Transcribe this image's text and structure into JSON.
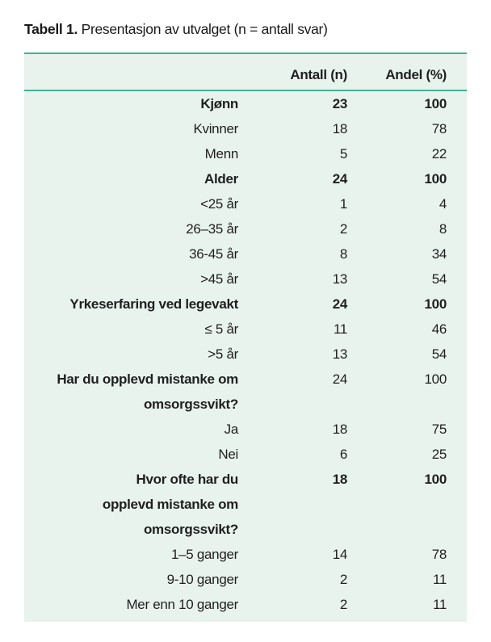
{
  "title": {
    "label": "Tabell 1.",
    "text": " Presentasjon av utvalget (n = antall svar)"
  },
  "colors": {
    "accent_green": "#45b193",
    "table_bg": "#e9f3ee",
    "text": "#1f1f1f"
  },
  "chart_data": {
    "type": "table",
    "title": "Tabell 1. Presentasjon av utvalget (n = antall svar)",
    "columns": [
      "",
      "Antall (n)",
      "Andel (%)"
    ],
    "legend_position": "none",
    "grid": false,
    "rows": [
      {
        "label": "Kjønn",
        "antall": "23",
        "andel": "100",
        "bold_label": true,
        "bold_values": true
      },
      {
        "label": "Kvinner",
        "antall": "18",
        "andel": "78",
        "bold_label": false,
        "bold_values": false
      },
      {
        "label": "Menn",
        "antall": "5",
        "andel": "22",
        "bold_label": false,
        "bold_values": false
      },
      {
        "label": "Alder",
        "antall": "24",
        "andel": "100",
        "bold_label": true,
        "bold_values": true
      },
      {
        "label": "<25 år",
        "antall": "1",
        "andel": "4",
        "bold_label": false,
        "bold_values": false
      },
      {
        "label": "26–35 år",
        "antall": "2",
        "andel": "8",
        "bold_label": false,
        "bold_values": false
      },
      {
        "label": "36-45 år",
        "antall": "8",
        "andel": "34",
        "bold_label": false,
        "bold_values": false
      },
      {
        "label": ">45 år",
        "antall": "13",
        "andel": "54",
        "bold_label": false,
        "bold_values": false
      },
      {
        "label": "Yrkeserfaring ved legevakt",
        "antall": "24",
        "andel": "100",
        "bold_label": true,
        "bold_values": true
      },
      {
        "label": "≤ 5 år",
        "antall": "11",
        "andel": "46",
        "bold_label": false,
        "bold_values": false
      },
      {
        "label": ">5 år",
        "antall": "13",
        "andel": "54",
        "bold_label": false,
        "bold_values": false
      },
      {
        "label": "Har du opplevd mistanke om\nomsorgssvikt?",
        "antall": "24",
        "andel": "100",
        "bold_label": true,
        "bold_values": false
      },
      {
        "label": "Ja",
        "antall": "18",
        "andel": "75",
        "bold_label": false,
        "bold_values": false
      },
      {
        "label": "Nei",
        "antall": "6",
        "andel": "25",
        "bold_label": false,
        "bold_values": false
      },
      {
        "label": "Hvor ofte har du\nopplevd mistanke om\nomsorgssvikt?",
        "antall": "18",
        "andel": "100",
        "bold_label": true,
        "bold_values": true
      },
      {
        "label": "1–5 ganger",
        "antall": "14",
        "andel": "78",
        "bold_label": false,
        "bold_values": false
      },
      {
        "label": "9-10 ganger",
        "antall": "2",
        "andel": "11",
        "bold_label": false,
        "bold_values": false
      },
      {
        "label": "Mer enn 10 ganger",
        "antall": "2",
        "andel": "11",
        "bold_label": false,
        "bold_values": false
      }
    ]
  }
}
